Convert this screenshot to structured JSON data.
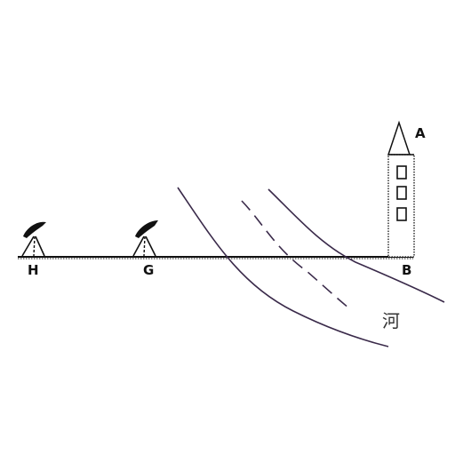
{
  "diagram": {
    "labels": {
      "tower_top": "A",
      "tower_base": "B",
      "near_instrument": "G",
      "far_instrument": "H",
      "river": "河"
    },
    "colors": {
      "ink": "#111111",
      "river": "#3a2a4a"
    },
    "icons": {
      "instrument": "theodolite-icon",
      "tower": "tower-icon"
    }
  }
}
